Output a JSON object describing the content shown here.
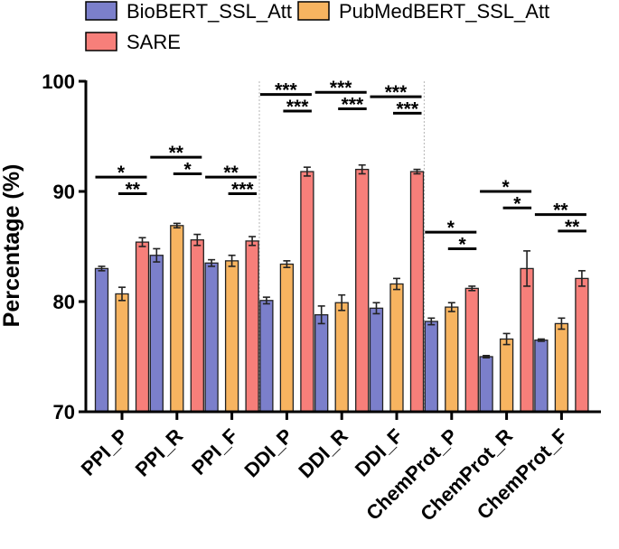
{
  "chart_data": {
    "type": "bar",
    "categories": [
      "PPI_P",
      "PPI_R",
      "PPI_F",
      "DDI_P",
      "DDI_R",
      "DDI_F",
      "ChemProt_P",
      "ChemProt_R",
      "ChemProt_F"
    ],
    "series": [
      {
        "name": "BioBERT_SSL_Att",
        "color": "#7b7fcb",
        "values": [
          83.0,
          84.2,
          83.5,
          80.1,
          78.8,
          79.4,
          78.2,
          75.0,
          76.5
        ],
        "errors": [
          0.2,
          0.6,
          0.3,
          0.3,
          0.8,
          0.5,
          0.3,
          0.1,
          0.1
        ]
      },
      {
        "name": "PubMedBERT_SSL_Att",
        "color": "#f7b460",
        "values": [
          80.7,
          86.9,
          83.7,
          83.4,
          79.9,
          81.6,
          79.5,
          76.6,
          78.0
        ],
        "errors": [
          0.6,
          0.2,
          0.5,
          0.3,
          0.7,
          0.5,
          0.4,
          0.5,
          0.5
        ]
      },
      {
        "name": "SARE",
        "color": "#f77f7a",
        "values": [
          85.4,
          85.6,
          85.5,
          91.8,
          92.0,
          91.8,
          81.2,
          83.0,
          82.1
        ],
        "errors": [
          0.4,
          0.5,
          0.4,
          0.4,
          0.4,
          0.2,
          0.2,
          1.6,
          0.7
        ]
      }
    ],
    "xlabel": "",
    "ylabel": "Percentage (%)",
    "ylim": [
      70,
      100
    ],
    "yticks": [
      70,
      80,
      90,
      100
    ],
    "legend_position": "top",
    "grid": false,
    "significance": [
      {
        "category": 0,
        "compare": "BioBERT_SSL_Att vs SARE",
        "label": "*",
        "level": 91.3
      },
      {
        "category": 0,
        "compare": "PubMedBERT_SSL_Att vs SARE",
        "label": "**",
        "level": 89.8
      },
      {
        "category": 1,
        "compare": "BioBERT_SSL_Att vs SARE",
        "label": "**",
        "level": 93.1
      },
      {
        "category": 1,
        "compare": "PubMedBERT_SSL_Att vs SARE",
        "label": "*",
        "level": 91.6
      },
      {
        "category": 2,
        "compare": "BioBERT_SSL_Att vs SARE",
        "label": "**",
        "level": 91.3
      },
      {
        "category": 2,
        "compare": "PubMedBERT_SSL_Att vs SARE",
        "label": "***",
        "level": 89.8
      },
      {
        "category": 3,
        "compare": "BioBERT_SSL_Att vs SARE",
        "label": "***",
        "level": 98.8
      },
      {
        "category": 3,
        "compare": "PubMedBERT_SSL_Att vs SARE",
        "label": "***",
        "level": 97.3
      },
      {
        "category": 4,
        "compare": "BioBERT_SSL_Att vs SARE",
        "label": "***",
        "level": 99.0
      },
      {
        "category": 4,
        "compare": "PubMedBERT_SSL_Att vs SARE",
        "label": "***",
        "level": 97.5
      },
      {
        "category": 5,
        "compare": "BioBERT_SSL_Att vs SARE",
        "label": "***",
        "level": 98.6
      },
      {
        "category": 5,
        "compare": "PubMedBERT_SSL_Att vs SARE",
        "label": "***",
        "level": 97.1
      },
      {
        "category": 6,
        "compare": "BioBERT_SSL_Att vs SARE",
        "label": "*",
        "level": 86.3
      },
      {
        "category": 6,
        "compare": "PubMedBERT_SSL_Att vs SARE",
        "label": "*",
        "level": 84.8
      },
      {
        "category": 7,
        "compare": "BioBERT_SSL_Att vs SARE",
        "label": "*",
        "level": 90.0
      },
      {
        "category": 7,
        "compare": "PubMedBERT_SSL_Att vs SARE",
        "label": "*",
        "level": 88.5
      },
      {
        "category": 8,
        "compare": "BioBERT_SSL_Att vs SARE",
        "label": "**",
        "level": 87.9
      },
      {
        "category": 8,
        "compare": "PubMedBERT_SSL_Att vs SARE",
        "label": "**",
        "level": 86.4
      }
    ],
    "group_separators_after": [
      2,
      5
    ]
  }
}
